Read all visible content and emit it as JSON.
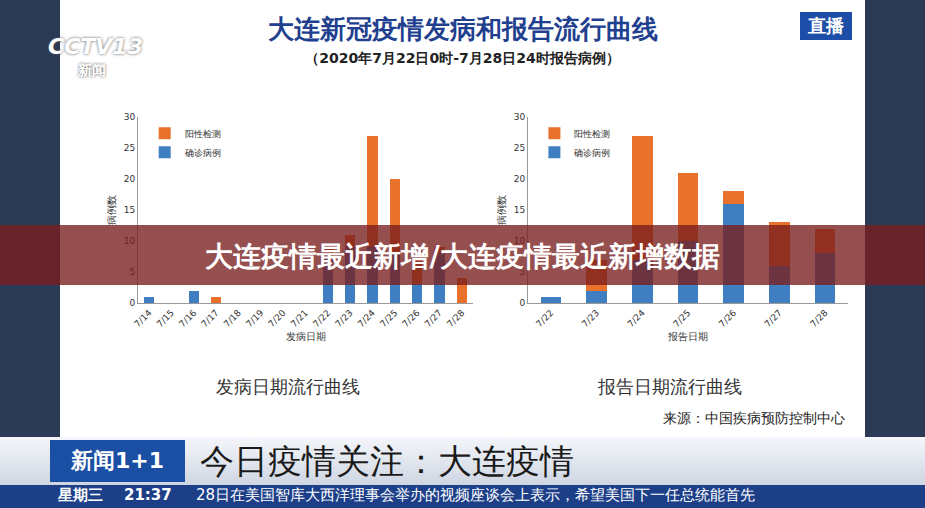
{
  "screen": {
    "logo": "CCTV13",
    "logo_sub": "新闻",
    "live": "直播",
    "slide_title": "大连新冠疫情发病和报告流行曲线",
    "slide_subtitle": "（2020年7月22日0时-7月28日24时报告病例）",
    "source": "来源：中国疾病预防控制中心",
    "banner": "大连疫情最近新增/大连疫情最近新增数据",
    "program": "新闻1+1",
    "headline": "今日疫情关注：大连疫情",
    "weekday": "星期三",
    "time": "21:37",
    "ticker": "28日在美国智库大西洋理事会举办的视频座谈会上表示，希望美国下一任总统能首先"
  },
  "chart_data": [
    {
      "type": "bar",
      "title": "发病日期流行曲线",
      "x_label": "发病日期",
      "y_label": "病例数",
      "categories": [
        "7/14",
        "7/15",
        "7/16",
        "7/17",
        "7/18",
        "7/19",
        "7/20",
        "7/21",
        "7/22",
        "7/23",
        "7/24",
        "7/25",
        "7/26",
        "7/27",
        "7/28"
      ],
      "series": [
        {
          "name": "确诊病例",
          "color": "#3f7fc1",
          "values": [
            1,
            0,
            2,
            0,
            0,
            0,
            0,
            0,
            8,
            9,
            9,
            8,
            3,
            8,
            0
          ]
        },
        {
          "name": "阳性检测",
          "color": "#e8712b",
          "values": [
            0,
            0,
            0,
            1,
            0,
            0,
            0,
            0,
            1,
            2,
            18,
            12,
            4,
            1,
            4
          ]
        }
      ],
      "stacked": true,
      "ylim": [
        0,
        30
      ],
      "yticks": [
        0,
        5,
        10,
        15,
        20,
        25,
        30
      ],
      "grid": false,
      "legend": "upper left"
    },
    {
      "type": "bar",
      "title": "报告日期流行曲线",
      "x_label": "报告日期",
      "y_label": "病例数",
      "categories": [
        "7/22",
        "7/23",
        "7/24",
        "7/25",
        "7/26",
        "7/27",
        "7/28"
      ],
      "series": [
        {
          "name": "确诊病例",
          "color": "#3f7fc1",
          "values": [
            1,
            2,
            7,
            10,
            16,
            6,
            8
          ]
        },
        {
          "name": "阳性检测",
          "color": "#e8712b",
          "values": [
            0,
            5,
            20,
            11,
            2,
            7,
            4
          ]
        }
      ],
      "stacked": true,
      "ylim": [
        0,
        30
      ],
      "yticks": [
        0,
        5,
        10,
        15,
        20,
        25,
        30
      ],
      "grid": false,
      "legend": "upper left"
    }
  ]
}
